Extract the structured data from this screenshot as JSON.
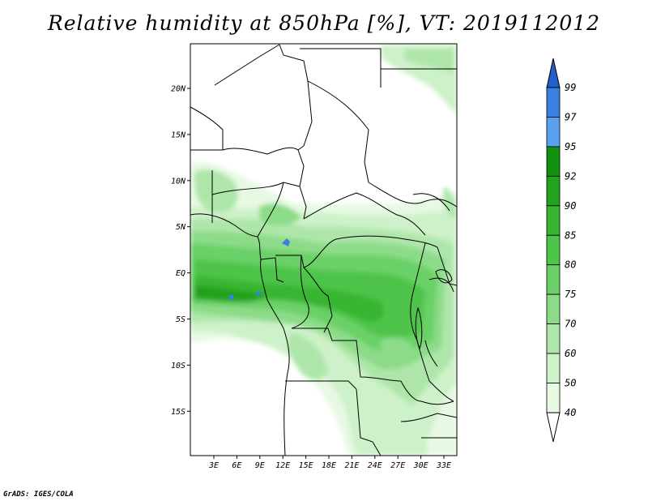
{
  "title": "Relative humidity at 850hPa [%], VT: 2019112012",
  "credit": "GrADS: IGES/COLA",
  "map": {
    "region": "Central Africa",
    "lat_labels": [
      "20N",
      "15N",
      "10N",
      "5N",
      "EQ",
      "5S",
      "10S",
      "15S"
    ],
    "lon_labels": [
      "3E",
      "6E",
      "9E",
      "12E",
      "15E",
      "18E",
      "21E",
      "24E",
      "27E",
      "30E",
      "33E"
    ]
  },
  "colorbar": {
    "labels": [
      "99",
      "97",
      "95",
      "92",
      "90",
      "85",
      "80",
      "75",
      "70",
      "60",
      "50",
      "40"
    ],
    "colors": [
      "#2060c8",
      "#3a80e0",
      "#5aa0f0",
      "#12900f",
      "#23a21f",
      "#37b532",
      "#4dc44a",
      "#6ad067",
      "#8cdb88",
      "#aee6aa",
      "#cdf1c9",
      "#e7f9e3"
    ]
  },
  "chart_data": {
    "type": "heatmap",
    "title": "Relative humidity at 850hPa [%], VT: 2019112012",
    "variable": "Relative humidity at 850hPa",
    "units": "%",
    "valid_time": "2019112012",
    "x_range": [
      0,
      35
    ],
    "y_range": [
      -19,
      25
    ],
    "contour_levels": [
      40,
      50,
      60,
      70,
      75,
      80,
      85,
      90,
      92,
      95,
      97,
      99
    ]
  }
}
